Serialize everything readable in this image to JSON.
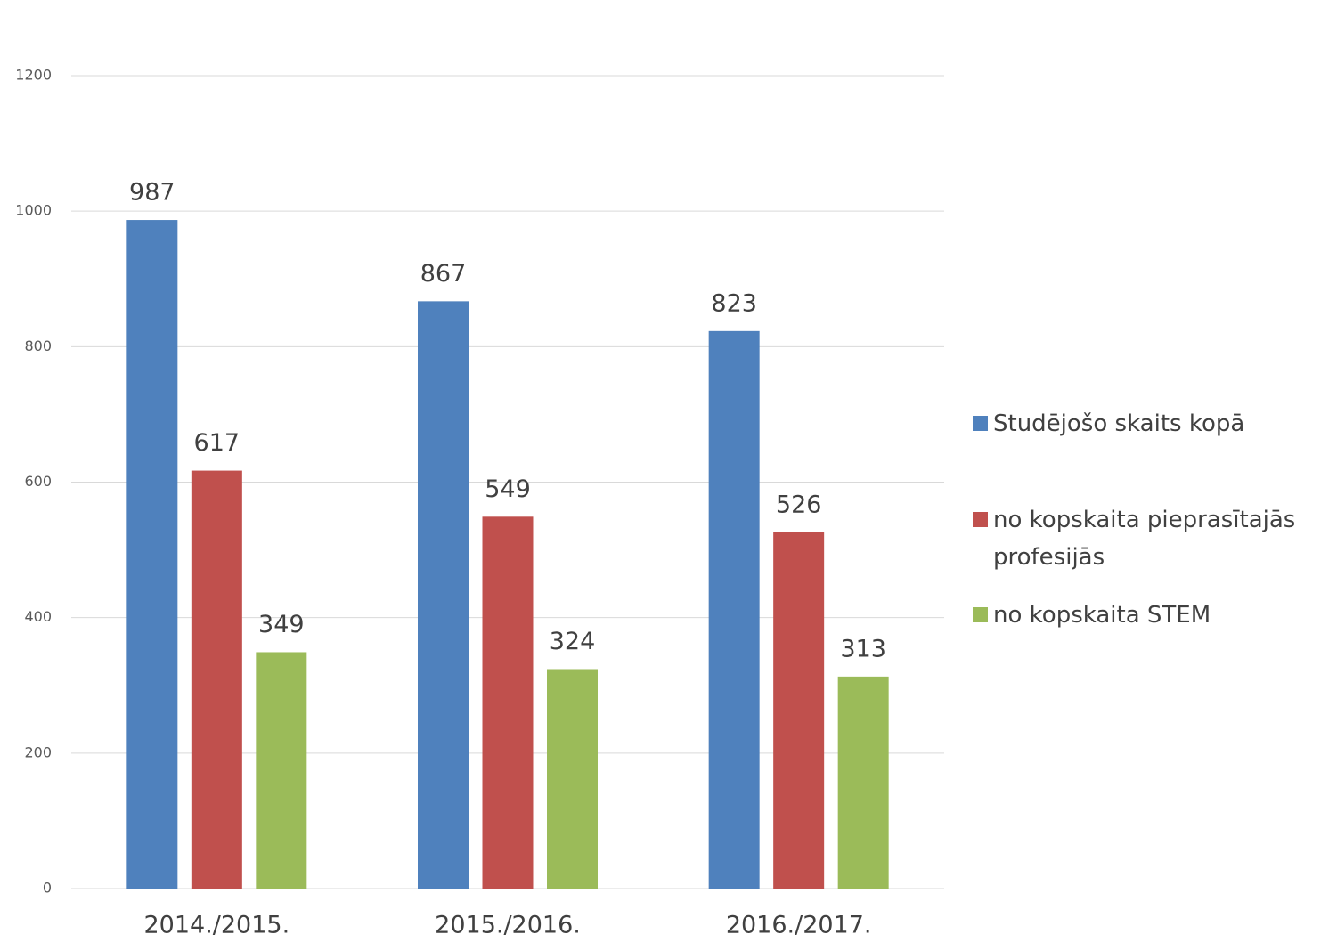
{
  "chart_data": {
    "type": "bar",
    "categories": [
      "2014./2015.",
      "2015./2016.",
      "2016./2017."
    ],
    "series": [
      {
        "name": "Studējošo skaits kopā",
        "color": "#4f81bd",
        "values": [
          987,
          867,
          823
        ]
      },
      {
        "name": "no kopskaita pieprasītajās profesijās",
        "color": "#c0504d",
        "values": [
          617,
          549,
          526
        ]
      },
      {
        "name": "no kopskaita STEM",
        "color": "#9bbb59",
        "values": [
          349,
          324,
          313
        ]
      }
    ],
    "ylim": [
      0,
      1200
    ],
    "yticks": [
      0,
      200,
      400,
      600,
      800,
      1000,
      1200
    ],
    "grid": true,
    "legend": "right"
  }
}
